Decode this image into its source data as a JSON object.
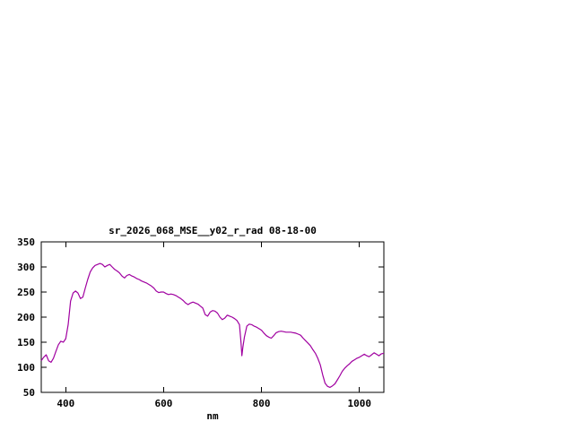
{
  "chart_data": {
    "type": "line",
    "title": "sr_2026_068_MSE__y02_r_rad 08-18-00",
    "xlabel": "nm",
    "ylabel": "",
    "line_color": "#a000a0",
    "background_color": "#ffffff",
    "grid": false,
    "legend": "none",
    "xlim": [
      350,
      1050
    ],
    "ylim": [
      50,
      350
    ],
    "xticks": [
      400,
      600,
      800,
      1000
    ],
    "yticks": [
      50,
      100,
      150,
      200,
      250,
      300,
      350
    ],
    "x": [
      350,
      355,
      360,
      365,
      370,
      375,
      380,
      385,
      390,
      395,
      400,
      405,
      410,
      415,
      420,
      425,
      430,
      435,
      440,
      445,
      450,
      455,
      460,
      465,
      470,
      475,
      480,
      485,
      490,
      495,
      500,
      505,
      510,
      515,
      520,
      525,
      530,
      535,
      540,
      545,
      550,
      555,
      560,
      565,
      570,
      575,
      580,
      585,
      590,
      595,
      600,
      605,
      610,
      615,
      620,
      625,
      630,
      635,
      640,
      645,
      650,
      655,
      660,
      665,
      670,
      675,
      680,
      685,
      690,
      695,
      700,
      705,
      710,
      715,
      720,
      725,
      730,
      735,
      740,
      745,
      750,
      755,
      758,
      760,
      762,
      765,
      770,
      775,
      780,
      785,
      790,
      795,
      800,
      805,
      810,
      815,
      820,
      825,
      830,
      835,
      840,
      845,
      850,
      855,
      860,
      865,
      870,
      875,
      880,
      885,
      890,
      895,
      900,
      905,
      910,
      915,
      920,
      925,
      930,
      935,
      940,
      945,
      950,
      955,
      960,
      965,
      970,
      975,
      980,
      985,
      990,
      995,
      1000,
      1005,
      1010,
      1015,
      1020,
      1025,
      1030,
      1035,
      1040,
      1045,
      1050
    ],
    "y": [
      113,
      120,
      125,
      113,
      110,
      118,
      132,
      145,
      152,
      150,
      157,
      185,
      232,
      248,
      252,
      248,
      237,
      240,
      258,
      275,
      290,
      298,
      303,
      305,
      307,
      305,
      300,
      303,
      305,
      300,
      295,
      292,
      288,
      282,
      278,
      283,
      285,
      282,
      280,
      277,
      275,
      272,
      270,
      268,
      265,
      262,
      258,
      252,
      249,
      250,
      250,
      247,
      245,
      246,
      245,
      243,
      240,
      237,
      233,
      228,
      225,
      228,
      230,
      228,
      226,
      222,
      218,
      205,
      202,
      210,
      213,
      212,
      208,
      200,
      195,
      198,
      204,
      202,
      200,
      197,
      193,
      185,
      150,
      123,
      140,
      160,
      182,
      186,
      185,
      182,
      180,
      177,
      174,
      168,
      163,
      160,
      158,
      163,
      169,
      171,
      172,
      171,
      170,
      170,
      170,
      169,
      168,
      166,
      164,
      158,
      153,
      148,
      143,
      135,
      128,
      118,
      105,
      85,
      68,
      62,
      60,
      63,
      67,
      75,
      83,
      92,
      98,
      103,
      107,
      112,
      115,
      118,
      120,
      123,
      126,
      123,
      121,
      125,
      129,
      126,
      123,
      127,
      128
    ]
  }
}
